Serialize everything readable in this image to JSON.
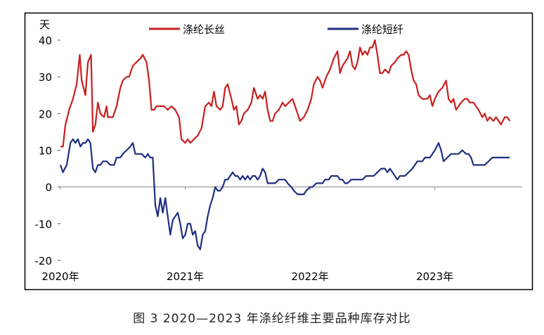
{
  "chart_data": {
    "type": "line",
    "ylabel": "天",
    "ylim": [
      -20,
      40
    ],
    "yticks": [
      "40",
      "30",
      "20",
      "10",
      "0",
      "-10",
      "-20"
    ],
    "ytick_values": [
      40,
      30,
      20,
      10,
      0,
      -10,
      -20
    ],
    "xlim": [
      2020.0,
      2023.7
    ],
    "xtick_labels": [
      "2020年",
      "2021年",
      "2022年",
      "2023年"
    ],
    "xtick_values": [
      2020.0,
      2021.0,
      2022.0,
      2023.0
    ],
    "legend_position": "top",
    "grid": false,
    "series": [
      {
        "name": "涤纶长丝",
        "color": "#c8201e",
        "points": [
          [
            2020.0,
            11
          ],
          [
            2020.02,
            11
          ],
          [
            2020.04,
            17
          ],
          [
            2020.07,
            21
          ],
          [
            2020.1,
            24
          ],
          [
            2020.13,
            28
          ],
          [
            2020.155,
            36
          ],
          [
            2020.17,
            29
          ],
          [
            2020.2,
            25
          ],
          [
            2020.22,
            34
          ],
          [
            2020.245,
            36
          ],
          [
            2020.26,
            15
          ],
          [
            2020.28,
            17
          ],
          [
            2020.3,
            23
          ],
          [
            2020.32,
            20
          ],
          [
            2020.35,
            19
          ],
          [
            2020.37,
            22
          ],
          [
            2020.38,
            19
          ],
          [
            2020.42,
            19
          ],
          [
            2020.45,
            22
          ],
          [
            2020.48,
            27
          ],
          [
            2020.5,
            29
          ],
          [
            2020.53,
            30
          ],
          [
            2020.55,
            30
          ],
          [
            2020.58,
            33
          ],
          [
            2020.61,
            34
          ],
          [
            2020.64,
            35
          ],
          [
            2020.66,
            36
          ],
          [
            2020.69,
            34
          ],
          [
            2020.71,
            29
          ],
          [
            2020.73,
            21
          ],
          [
            2020.75,
            21
          ],
          [
            2020.77,
            22
          ],
          [
            2020.8,
            22
          ],
          [
            2020.83,
            22
          ],
          [
            2020.86,
            21
          ],
          [
            2020.89,
            22
          ],
          [
            2020.92,
            21
          ],
          [
            2020.95,
            19
          ],
          [
            2020.97,
            13
          ],
          [
            2021.0,
            12
          ],
          [
            2021.02,
            13
          ],
          [
            2021.04,
            12
          ],
          [
            2021.07,
            13
          ],
          [
            2021.1,
            14
          ],
          [
            2021.13,
            16
          ],
          [
            2021.16,
            22
          ],
          [
            2021.19,
            23
          ],
          [
            2021.21,
            22
          ],
          [
            2021.23,
            26
          ],
          [
            2021.25,
            22
          ],
          [
            2021.28,
            21
          ],
          [
            2021.3,
            22
          ],
          [
            2021.32,
            27
          ],
          [
            2021.34,
            28
          ],
          [
            2021.37,
            24
          ],
          [
            2021.39,
            21
          ],
          [
            2021.41,
            22
          ],
          [
            2021.43,
            17
          ],
          [
            2021.45,
            18
          ],
          [
            2021.47,
            20
          ],
          [
            2021.5,
            21
          ],
          [
            2021.53,
            23
          ],
          [
            2021.55,
            27
          ],
          [
            2021.58,
            24
          ],
          [
            2021.6,
            25
          ],
          [
            2021.62,
            24
          ],
          [
            2021.64,
            26
          ],
          [
            2021.66,
            21
          ],
          [
            2021.68,
            18
          ],
          [
            2021.7,
            18
          ],
          [
            2021.72,
            20
          ],
          [
            2021.75,
            21
          ],
          [
            2021.78,
            23
          ],
          [
            2021.8,
            22
          ],
          [
            2021.83,
            23
          ],
          [
            2021.86,
            24
          ],
          [
            2021.88,
            22
          ],
          [
            2021.9,
            20
          ],
          [
            2021.92,
            18
          ],
          [
            2021.95,
            19
          ],
          [
            2021.98,
            21
          ],
          [
            2022.01,
            24
          ],
          [
            2022.03,
            28
          ],
          [
            2022.06,
            30
          ],
          [
            2022.08,
            29
          ],
          [
            2022.1,
            27
          ],
          [
            2022.13,
            30
          ],
          [
            2022.16,
            32
          ],
          [
            2022.19,
            35
          ],
          [
            2022.22,
            37
          ],
          [
            2022.24,
            31
          ],
          [
            2022.26,
            33
          ],
          [
            2022.28,
            34
          ],
          [
            2022.3,
            35
          ],
          [
            2022.32,
            37
          ],
          [
            2022.34,
            33
          ],
          [
            2022.36,
            32
          ],
          [
            2022.38,
            34
          ],
          [
            2022.4,
            38
          ],
          [
            2022.42,
            36
          ],
          [
            2022.44,
            37
          ],
          [
            2022.46,
            36
          ],
          [
            2022.48,
            38
          ],
          [
            2022.5,
            38
          ],
          [
            2022.52,
            40
          ],
          [
            2022.54,
            36
          ],
          [
            2022.56,
            31
          ],
          [
            2022.58,
            31
          ],
          [
            2022.6,
            32
          ],
          [
            2022.63,
            31
          ],
          [
            2022.65,
            33
          ],
          [
            2022.68,
            34
          ],
          [
            2022.7,
            35
          ],
          [
            2022.73,
            36
          ],
          [
            2022.75,
            36
          ],
          [
            2022.77,
            37
          ],
          [
            2022.79,
            36
          ],
          [
            2022.81,
            32
          ],
          [
            2022.83,
            29
          ],
          [
            2022.85,
            28
          ],
          [
            2022.87,
            25
          ],
          [
            2022.9,
            24
          ],
          [
            2022.92,
            24
          ],
          [
            2022.94,
            24
          ],
          [
            2022.96,
            25
          ],
          [
            2022.98,
            22
          ],
          [
            2023.0,
            24
          ],
          [
            2023.03,
            26
          ],
          [
            2023.06,
            27
          ],
          [
            2023.09,
            29
          ],
          [
            2023.11,
            24
          ],
          [
            2023.13,
            23
          ],
          [
            2023.15,
            24
          ],
          [
            2023.17,
            21
          ],
          [
            2023.19,
            22
          ],
          [
            2023.21,
            23
          ],
          [
            2023.24,
            24
          ],
          [
            2023.26,
            24
          ],
          [
            2023.28,
            23
          ],
          [
            2023.31,
            23
          ],
          [
            2023.33,
            22
          ],
          [
            2023.35,
            21
          ],
          [
            2023.38,
            19
          ],
          [
            2023.4,
            20
          ],
          [
            2023.42,
            18
          ],
          [
            2023.44,
            19
          ],
          [
            2023.47,
            18
          ],
          [
            2023.49,
            19
          ],
          [
            2023.51,
            18
          ],
          [
            2023.53,
            17
          ],
          [
            2023.56,
            19
          ],
          [
            2023.58,
            19
          ],
          [
            2023.6,
            18
          ]
        ]
      },
      {
        "name": "涤纶短纤",
        "color": "#1f2f7f",
        "points": [
          [
            2020.0,
            6
          ],
          [
            2020.02,
            4
          ],
          [
            2020.05,
            6
          ],
          [
            2020.08,
            12
          ],
          [
            2020.1,
            13
          ],
          [
            2020.12,
            12
          ],
          [
            2020.14,
            13
          ],
          [
            2020.16,
            11
          ],
          [
            2020.18,
            12
          ],
          [
            2020.2,
            12
          ],
          [
            2020.22,
            13
          ],
          [
            2020.24,
            12
          ],
          [
            2020.26,
            5
          ],
          [
            2020.28,
            4
          ],
          [
            2020.3,
            6
          ],
          [
            2020.32,
            6
          ],
          [
            2020.34,
            7
          ],
          [
            2020.37,
            7
          ],
          [
            2020.4,
            6
          ],
          [
            2020.43,
            6
          ],
          [
            2020.45,
            8
          ],
          [
            2020.48,
            8
          ],
          [
            2020.5,
            9
          ],
          [
            2020.53,
            10
          ],
          [
            2020.56,
            11
          ],
          [
            2020.58,
            12
          ],
          [
            2020.6,
            9
          ],
          [
            2020.62,
            9
          ],
          [
            2020.65,
            9
          ],
          [
            2020.68,
            8
          ],
          [
            2020.7,
            9
          ],
          [
            2020.72,
            8
          ],
          [
            2020.74,
            8
          ],
          [
            2020.76,
            -5
          ],
          [
            2020.78,
            -8
          ],
          [
            2020.8,
            -3
          ],
          [
            2020.82,
            -7
          ],
          [
            2020.84,
            -3
          ],
          [
            2020.86,
            -8
          ],
          [
            2020.88,
            -13
          ],
          [
            2020.9,
            -9
          ],
          [
            2020.92,
            -8
          ],
          [
            2020.94,
            -7
          ],
          [
            2020.96,
            -10
          ],
          [
            2020.98,
            -14
          ],
          [
            2021.0,
            -13
          ],
          [
            2021.02,
            -10
          ],
          [
            2021.04,
            -10
          ],
          [
            2021.06,
            -13
          ],
          [
            2021.08,
            -12
          ],
          [
            2021.1,
            -16
          ],
          [
            2021.12,
            -17
          ],
          [
            2021.14,
            -13
          ],
          [
            2021.16,
            -12
          ],
          [
            2021.18,
            -8
          ],
          [
            2021.2,
            -5
          ],
          [
            2021.22,
            -3
          ],
          [
            2021.24,
            0
          ],
          [
            2021.26,
            -1
          ],
          [
            2021.28,
            -1
          ],
          [
            2021.3,
            0
          ],
          [
            2021.32,
            2
          ],
          [
            2021.34,
            2
          ],
          [
            2021.36,
            3
          ],
          [
            2021.38,
            4
          ],
          [
            2021.4,
            3
          ],
          [
            2021.42,
            3
          ],
          [
            2021.44,
            2
          ],
          [
            2021.46,
            3
          ],
          [
            2021.48,
            2
          ],
          [
            2021.5,
            3
          ],
          [
            2021.52,
            2
          ],
          [
            2021.54,
            3
          ],
          [
            2021.56,
            3
          ],
          [
            2021.58,
            2
          ],
          [
            2021.6,
            3
          ],
          [
            2021.62,
            5
          ],
          [
            2021.64,
            4
          ],
          [
            2021.66,
            1
          ],
          [
            2021.68,
            1
          ],
          [
            2021.7,
            1
          ],
          [
            2021.72,
            1
          ],
          [
            2021.75,
            2
          ],
          [
            2021.77,
            2
          ],
          [
            2021.8,
            2
          ],
          [
            2021.82,
            1
          ],
          [
            2021.85,
            0
          ],
          [
            2021.87,
            -1
          ],
          [
            2021.9,
            -2
          ],
          [
            2021.92,
            -2
          ],
          [
            2021.95,
            -2
          ],
          [
            2021.97,
            -1
          ],
          [
            2022.0,
            0
          ],
          [
            2022.02,
            0
          ],
          [
            2022.05,
            1
          ],
          [
            2022.07,
            1
          ],
          [
            2022.1,
            1
          ],
          [
            2022.12,
            2
          ],
          [
            2022.15,
            2
          ],
          [
            2022.17,
            3
          ],
          [
            2022.2,
            3
          ],
          [
            2022.22,
            3
          ],
          [
            2022.24,
            2
          ],
          [
            2022.26,
            2
          ],
          [
            2022.28,
            1
          ],
          [
            2022.3,
            1
          ],
          [
            2022.33,
            2
          ],
          [
            2022.36,
            2
          ],
          [
            2022.39,
            2
          ],
          [
            2022.42,
            2
          ],
          [
            2022.45,
            3
          ],
          [
            2022.48,
            3
          ],
          [
            2022.51,
            3
          ],
          [
            2022.54,
            4
          ],
          [
            2022.57,
            5
          ],
          [
            2022.6,
            5
          ],
          [
            2022.62,
            4
          ],
          [
            2022.64,
            5
          ],
          [
            2022.66,
            4
          ],
          [
            2022.68,
            3
          ],
          [
            2022.7,
            2
          ],
          [
            2022.72,
            3
          ],
          [
            2022.74,
            3
          ],
          [
            2022.76,
            3
          ],
          [
            2022.79,
            4
          ],
          [
            2022.82,
            5
          ],
          [
            2022.84,
            6
          ],
          [
            2022.86,
            7
          ],
          [
            2022.88,
            7
          ],
          [
            2022.9,
            7
          ],
          [
            2022.92,
            8
          ],
          [
            2022.94,
            8
          ],
          [
            2022.96,
            8
          ],
          [
            2022.98,
            9
          ],
          [
            2023.0,
            10
          ],
          [
            2023.03,
            12
          ],
          [
            2023.05,
            10
          ],
          [
            2023.07,
            7
          ],
          [
            2023.1,
            8
          ],
          [
            2023.13,
            9
          ],
          [
            2023.16,
            9
          ],
          [
            2023.19,
            9
          ],
          [
            2023.22,
            10
          ],
          [
            2023.25,
            9
          ],
          [
            2023.27,
            9
          ],
          [
            2023.29,
            8
          ],
          [
            2023.31,
            6
          ],
          [
            2023.34,
            6
          ],
          [
            2023.37,
            6
          ],
          [
            2023.4,
            6
          ],
          [
            2023.43,
            7
          ],
          [
            2023.46,
            8
          ],
          [
            2023.49,
            8
          ],
          [
            2023.52,
            8
          ],
          [
            2023.55,
            8
          ],
          [
            2023.6,
            8
          ]
        ]
      }
    ]
  },
  "caption": "图 3  2020—2023 年涤纶纤维主要品种库存对比"
}
